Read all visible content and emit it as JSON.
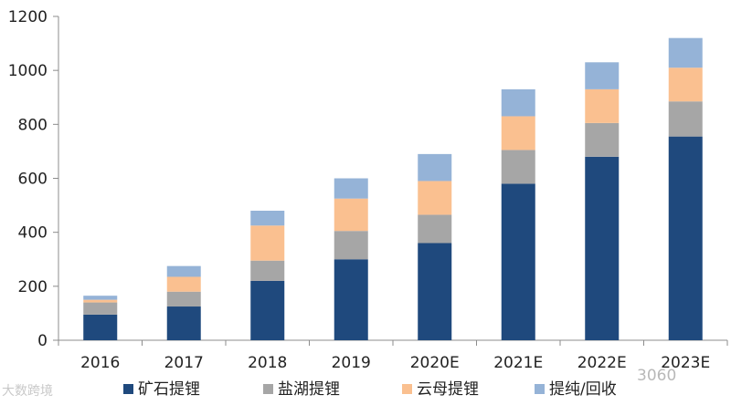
{
  "chart_data": {
    "type": "bar",
    "stacked": true,
    "categories": [
      "2016",
      "2017",
      "2018",
      "2019",
      "2020E",
      "2021E",
      "2022E",
      "2023E"
    ],
    "series": [
      {
        "name": "矿石提锂",
        "color": "#1f497d",
        "values": [
          95,
          125,
          220,
          300,
          360,
          580,
          680,
          755
        ]
      },
      {
        "name": "盐湖提锂",
        "color": "#a6a6a6",
        "values": [
          45,
          55,
          75,
          105,
          105,
          125,
          125,
          130
        ]
      },
      {
        "name": "云母提锂",
        "color": "#fac090",
        "values": [
          10,
          55,
          130,
          120,
          125,
          125,
          125,
          125
        ]
      },
      {
        "name": "提纯/回收",
        "color": "#95b3d7",
        "values": [
          15,
          40,
          55,
          75,
          100,
          100,
          100,
          110
        ]
      }
    ],
    "y_ticks": [
      "0",
      "200",
      "400",
      "600",
      "800",
      "1000",
      "1200"
    ],
    "ylim": [
      0,
      1200
    ],
    "legend_position": "bottom",
    "grid": false
  },
  "watermark": {
    "left": "大数跨境",
    "right": "3060"
  }
}
